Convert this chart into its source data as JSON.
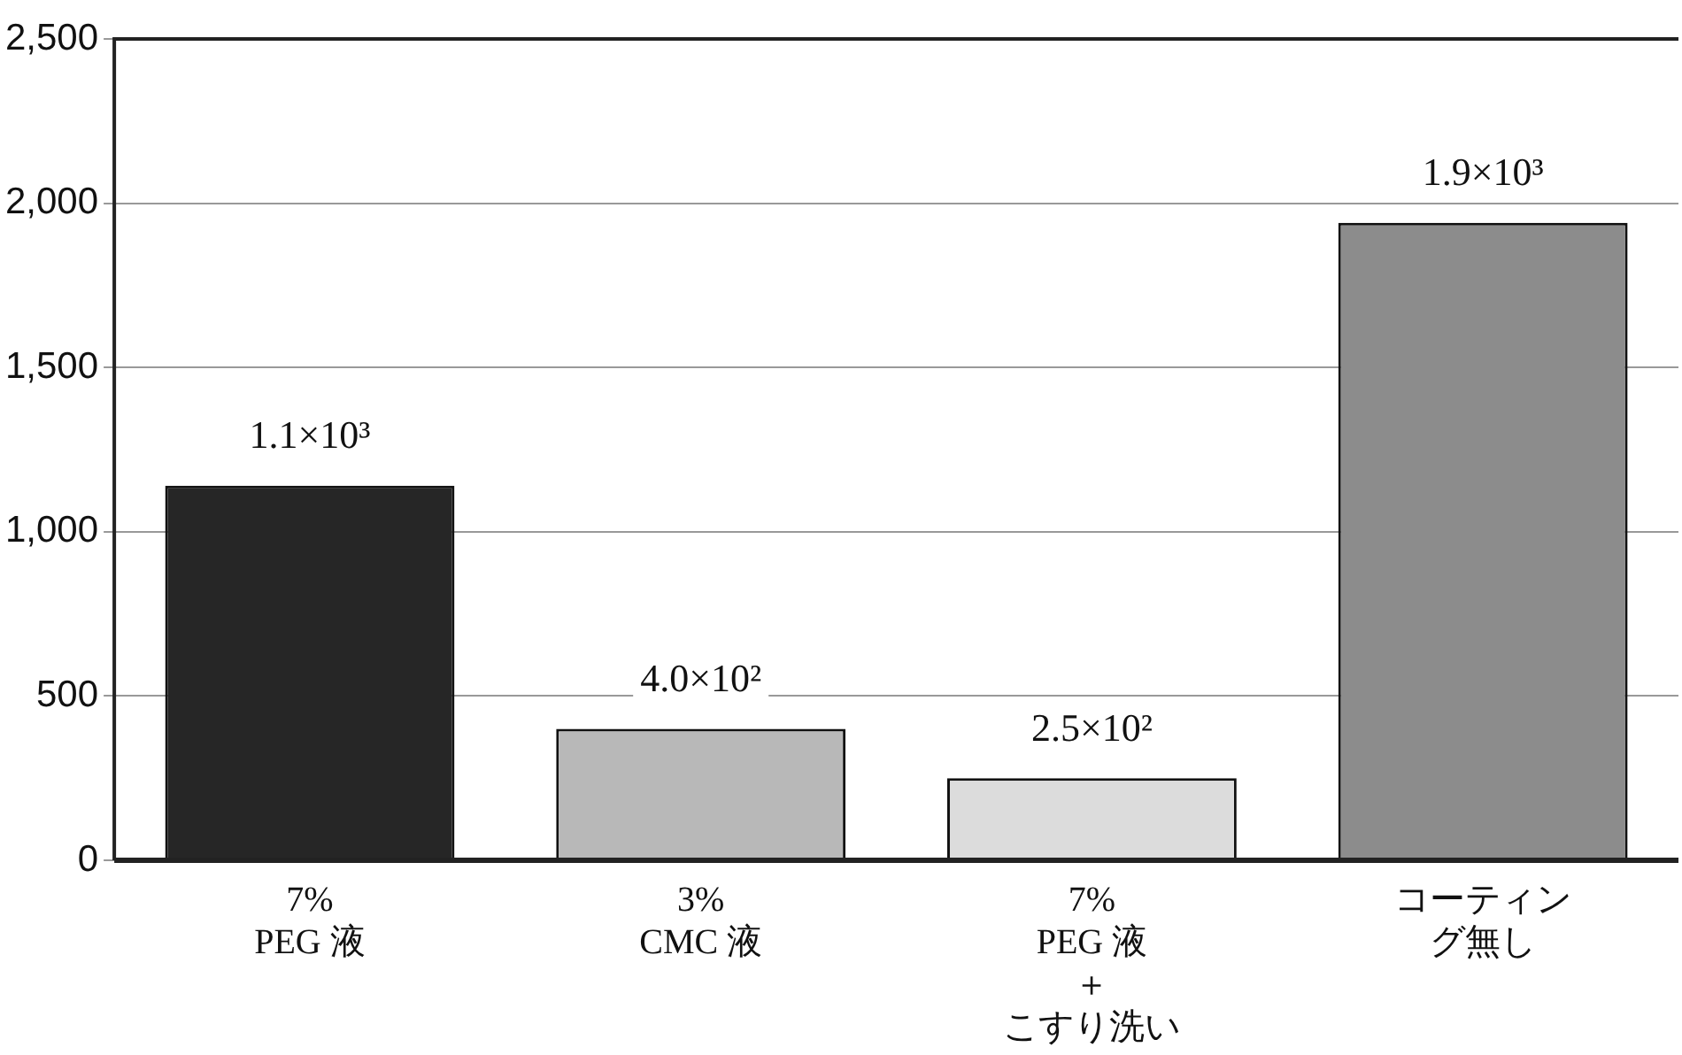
{
  "chart_data": {
    "type": "bar",
    "categories": [
      "7%\nPEG 液",
      "3%\nCMC 液",
      "7%\nPEG 液＋こすり洗い",
      "コーティング無し"
    ],
    "values": [
      1140,
      400,
      250,
      1940
    ],
    "colors": [
      "#262626",
      "#b8b8b8",
      "#dcdcdc",
      "#8c8c8c"
    ],
    "value_labels": [
      "1.1×10³",
      "4.0×10²",
      "2.5×10²",
      "1.9×10³"
    ],
    "ylim": [
      0,
      2500
    ],
    "yticks": [
      {
        "value": 0,
        "label": "0"
      },
      {
        "value": 500,
        "label": "500"
      },
      {
        "value": 1000,
        "label": "1,000"
      },
      {
        "value": 1500,
        "label": "1,500"
      },
      {
        "value": 2000,
        "label": "2,000"
      },
      {
        "value": 2500,
        "label": "2,500"
      }
    ],
    "grid": "y",
    "legend": false
  }
}
